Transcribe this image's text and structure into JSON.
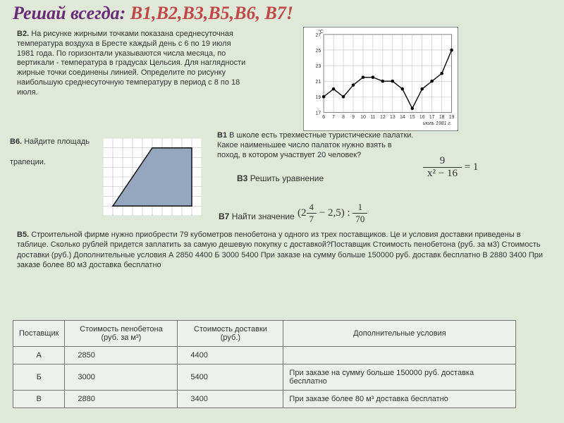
{
  "title": {
    "lead": "Решай всегда: ",
    "codes": "В1,В2,В3,В5,В6, В7",
    "exclaim": "!"
  },
  "b2": {
    "label": "В2.",
    "text": "На рисунке жирными точками показана среднесуточная температура воздуха в Бресте каждый день с 6 по 19 июля 1981 года. По горизонтали указываются числа месяца, по вертикали - температура в градусах Цельсия. Для наглядности жирные точки соединены линией. Определите по рисунку наибольшую среднесуточную температуру в период с 8 по 18 июля."
  },
  "chart": {
    "type": "line",
    "x_ticks": [
      6,
      7,
      8,
      9,
      10,
      11,
      12,
      13,
      14,
      15,
      16,
      17,
      18,
      19
    ],
    "y_ticks": [
      17,
      19,
      21,
      23,
      25,
      27
    ],
    "ylim": [
      17,
      27
    ],
    "values": [
      19,
      20,
      19,
      20.5,
      21.5,
      21.5,
      21,
      21,
      20,
      17.5,
      20,
      21,
      22,
      25
    ],
    "line_color": "#000000",
    "point_color": "#000000",
    "grid_color": "#bfbfbf",
    "background_color": "#ffffff",
    "axis_unit": "°C",
    "caption": "июль 1981 г.",
    "marker_size": 2.3,
    "line_width": 1.4,
    "tick_fontsize": 7
  },
  "b6": {
    "label": "В6.",
    "text1": "Найдите площадь",
    "text2": "трапеции."
  },
  "trapezoid": {
    "grid_cells_x": 10,
    "grid_cells_y": 8,
    "grid_color": "#b8b8b8",
    "fill_color": "#94a7bf",
    "stroke_color": "#111111",
    "vertices_cells": [
      [
        1,
        7
      ],
      [
        9,
        7
      ],
      [
        9,
        1
      ],
      [
        5,
        1
      ]
    ]
  },
  "b1": {
    "label": "В1",
    "text": "В школе есть трехместные туристические палатки. Какое наименьшее число палаток нужно взять в поход, в котором участвует 20 человек?"
  },
  "b3": {
    "label": "В3",
    "text": "Решить уравнение"
  },
  "eq1": {
    "numerator": "9",
    "denominator": "x² − 16",
    "rhs": "= 1"
  },
  "b7": {
    "label": "В7",
    "text": "Найти значение"
  },
  "eq2": {
    "open": "(2",
    "f1_num": "4",
    "f1_den": "7",
    "mid": " − 2,5) : ",
    "f2_num": "1",
    "f2_den": "70"
  },
  "b5": {
    "label": "В5.",
    "text": "Строительной фирме нужно приобрести 79 кубометров пенобетона у одного из трех поставщиков. Це и условия доставки приведены в таблице. Сколько рублей придется заплатить за самую дешевую покупку с доставкой?Поставщик Стоимость пенобетона (руб. за м3) Стоимость доставки (руб.) Дополнительные условия А 2850 4400  Б 3000 5400 При заказе на сумму больше 150000 руб. доставк бесплатно В 2880 3400 При заказе более 80 м3 доставка бесплатно"
  },
  "table": {
    "headers": [
      "Поставщик",
      "Стоимость пенобетона (руб. за м³)",
      "Стоимость доставки (руб.)",
      "Дополнительные условия"
    ],
    "rows": [
      [
        "А",
        "2850",
        "4400",
        ""
      ],
      [
        "Б",
        "3000",
        "5400",
        "При заказе на сумму больше 150000 руб. доставка бесплатно"
      ],
      [
        "В",
        "2880",
        "3400",
        "При заказе более 80 м³ доставка бесплатно"
      ]
    ],
    "border_color": "#777777",
    "cell_background": "#eef0ec"
  }
}
